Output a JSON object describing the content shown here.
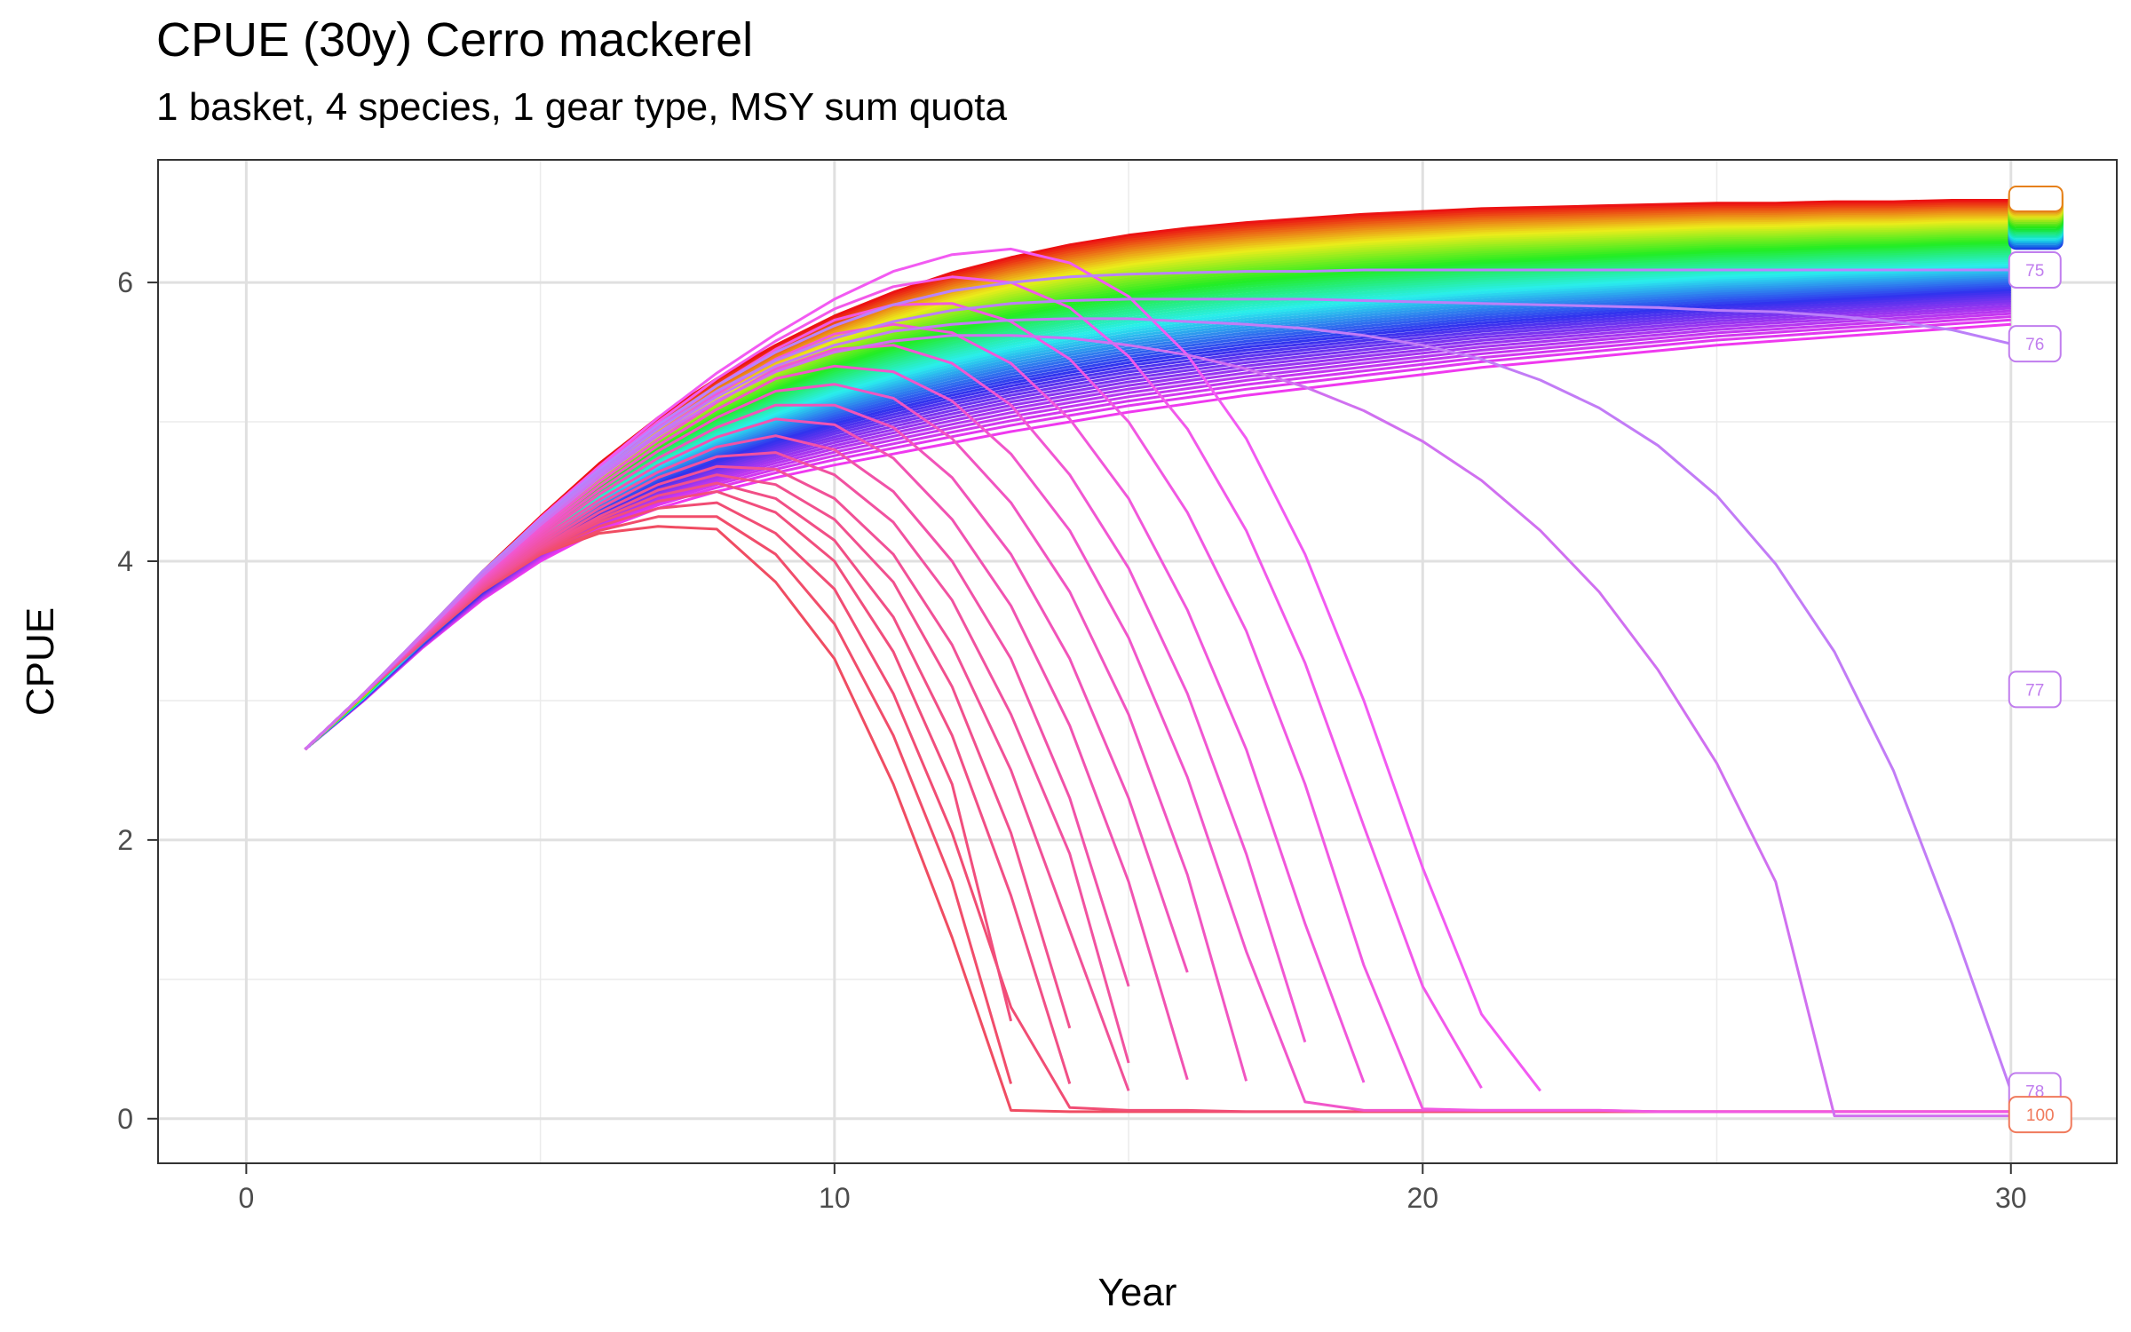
{
  "chart_data": {
    "type": "line",
    "title": "CPUE (30y) Cerro mackerel",
    "subtitle": "1 basket, 4 species, 1 gear type, MSY sum quota",
    "xlabel": "Year",
    "ylabel": "CPUE",
    "xlim": [
      -1.5,
      31.8
    ],
    "ylim": [
      -0.32,
      6.88
    ],
    "x_ticks": [
      0,
      10,
      20,
      30
    ],
    "y_ticks": [
      0,
      2,
      4,
      6
    ],
    "grid": true,
    "legend": "none",
    "series_count": 100,
    "colors": {
      "series_1": "#f8766d",
      "mid_green": "#00ba38",
      "mid_blue": "#00b0f6",
      "series_75": "#b983ff",
      "series_90": "#f564e3",
      "series_100": "#f8766d",
      "label_mix": "#c07dc0"
    },
    "series_envelope": {
      "upper_path": {
        "x": [
          1,
          2,
          3,
          4,
          5,
          6,
          7,
          8,
          9,
          10,
          11,
          12,
          13,
          14,
          15,
          16,
          17,
          18,
          19,
          20,
          21,
          22,
          23,
          24,
          25,
          26,
          27,
          28,
          29,
          30
        ],
        "y": [
          2.65,
          3.05,
          3.48,
          3.92,
          4.32,
          4.7,
          5.03,
          5.31,
          5.55,
          5.76,
          5.93,
          6.07,
          6.18,
          6.27,
          6.34,
          6.39,
          6.43,
          6.46,
          6.49,
          6.51,
          6.53,
          6.54,
          6.55,
          6.56,
          6.57,
          6.57,
          6.58,
          6.58,
          6.59,
          6.59
        ]
      },
      "lower_path": {
        "x": [
          1,
          2,
          3,
          4,
          5,
          6,
          7,
          8,
          9,
          10,
          11,
          12,
          13,
          14,
          15,
          16,
          17,
          18,
          19,
          20,
          21,
          22,
          23,
          24,
          25,
          26,
          27,
          28,
          29,
          30
        ],
        "y": [
          2.65,
          3.0,
          3.38,
          3.72,
          4.0,
          4.22,
          4.38,
          4.5,
          4.6,
          4.69,
          4.77,
          4.85,
          4.93,
          5.0,
          5.07,
          5.13,
          5.19,
          5.24,
          5.29,
          5.34,
          5.39,
          5.43,
          5.47,
          5.51,
          5.55,
          5.58,
          5.61,
          5.64,
          5.67,
          5.7
        ]
      }
    },
    "collapse_series": [
      {
        "x": [
          1,
          2,
          3,
          4,
          5,
          6,
          7,
          8,
          9,
          10,
          11,
          12,
          13,
          14,
          15,
          16,
          17,
          18,
          19,
          20,
          21,
          22,
          23,
          24,
          25,
          26,
          27,
          28,
          29,
          30
        ],
        "y": [
          2.65,
          3.05,
          3.42,
          3.78,
          4.05,
          4.2,
          4.25,
          4.23,
          3.85,
          3.3,
          2.4,
          1.3,
          0.06,
          0.05,
          0.05,
          0.05,
          0.05,
          0.05,
          0.05,
          0.05,
          0.05,
          0.05,
          0.05,
          0.05,
          0.05,
          0.05,
          0.05,
          0.05,
          0.05,
          0.05
        ]
      },
      {
        "x": [
          1,
          2,
          3,
          4,
          5,
          6,
          7,
          8,
          9,
          10,
          11,
          12,
          13
        ],
        "y": [
          2.65,
          3.05,
          3.42,
          3.78,
          4.05,
          4.22,
          4.32,
          4.32,
          4.05,
          3.55,
          2.75,
          1.7,
          0.25
        ]
      },
      {
        "x": [
          1,
          2,
          3,
          4,
          5,
          6,
          7,
          8,
          9,
          10,
          11,
          12,
          13,
          14,
          15,
          16,
          17,
          18,
          19,
          20,
          21,
          22,
          23,
          24,
          25,
          26,
          27,
          28,
          29,
          30
        ],
        "y": [
          2.65,
          3.05,
          3.42,
          3.78,
          4.06,
          4.25,
          4.38,
          4.42,
          4.2,
          3.8,
          3.05,
          2.05,
          0.8,
          0.08,
          0.06,
          0.06,
          0.05,
          0.05,
          0.05,
          0.05,
          0.05,
          0.05,
          0.05,
          0.05,
          0.05,
          0.05,
          0.05,
          0.05,
          0.05,
          0.05
        ]
      },
      {
        "x": [
          1,
          2,
          3,
          4,
          5,
          6,
          7,
          8,
          9,
          10,
          11,
          12,
          13
        ],
        "y": [
          2.65,
          3.05,
          3.42,
          3.79,
          4.07,
          4.28,
          4.43,
          4.5,
          4.35,
          4.0,
          3.35,
          2.4,
          0.7
        ]
      },
      {
        "x": [
          1,
          2,
          3,
          4,
          5,
          6,
          7,
          8,
          9,
          10,
          11,
          12,
          13,
          14
        ],
        "y": [
          2.65,
          3.05,
          3.43,
          3.8,
          4.08,
          4.3,
          4.47,
          4.56,
          4.45,
          4.15,
          3.6,
          2.75,
          1.6,
          0.25
        ]
      },
      {
        "x": [
          1,
          2,
          3,
          4,
          5,
          6,
          7,
          8,
          9,
          10,
          11,
          12,
          13,
          14
        ],
        "y": [
          2.65,
          3.05,
          3.43,
          3.8,
          4.09,
          4.32,
          4.51,
          4.62,
          4.55,
          4.3,
          3.85,
          3.1,
          2.05,
          0.65
        ]
      },
      {
        "x": [
          1,
          2,
          3,
          4,
          5,
          6,
          7,
          8,
          9,
          10,
          11,
          12,
          13,
          14,
          15
        ],
        "y": [
          2.65,
          3.05,
          3.44,
          3.81,
          4.1,
          4.35,
          4.55,
          4.68,
          4.66,
          4.45,
          4.05,
          3.4,
          2.5,
          1.35,
          0.2
        ]
      },
      {
        "x": [
          1,
          2,
          3,
          4,
          5,
          6,
          7,
          8,
          9,
          10,
          11,
          12,
          13,
          14,
          15
        ],
        "y": [
          2.65,
          3.05,
          3.44,
          3.82,
          4.12,
          4.38,
          4.6,
          4.75,
          4.78,
          4.62,
          4.28,
          3.72,
          2.9,
          1.9,
          0.4
        ]
      },
      {
        "x": [
          1,
          2,
          3,
          4,
          5,
          6,
          7,
          8,
          9,
          10,
          11,
          12,
          13,
          14,
          15
        ],
        "y": [
          2.65,
          3.05,
          3.45,
          3.83,
          4.14,
          4.41,
          4.64,
          4.82,
          4.9,
          4.8,
          4.5,
          4.0,
          3.3,
          2.3,
          0.95
        ]
      },
      {
        "x": [
          1,
          2,
          3,
          4,
          5,
          6,
          7,
          8,
          9,
          10,
          11,
          12,
          13,
          14,
          15,
          16
        ],
        "y": [
          2.65,
          3.05,
          3.45,
          3.84,
          4.16,
          4.44,
          4.69,
          4.89,
          5.02,
          4.98,
          4.74,
          4.3,
          3.68,
          2.82,
          1.7,
          0.28
        ]
      },
      {
        "x": [
          1,
          2,
          3,
          4,
          5,
          6,
          7,
          8,
          9,
          10,
          11,
          12,
          13,
          14,
          15,
          16
        ],
        "y": [
          2.65,
          3.05,
          3.46,
          3.85,
          4.18,
          4.48,
          4.74,
          4.96,
          5.12,
          5.12,
          4.96,
          4.6,
          4.05,
          3.3,
          2.3,
          1.05
        ]
      },
      {
        "x": [
          1,
          2,
          3,
          4,
          5,
          6,
          7,
          8,
          9,
          10,
          11,
          12,
          13,
          14,
          15,
          16,
          17
        ],
        "y": [
          2.65,
          3.05,
          3.46,
          3.86,
          4.2,
          4.51,
          4.79,
          5.03,
          5.22,
          5.27,
          5.17,
          4.88,
          4.42,
          3.78,
          2.9,
          1.75,
          0.27
        ]
      },
      {
        "x": [
          1,
          2,
          3,
          4,
          5,
          6,
          7,
          8,
          9,
          10,
          11,
          12,
          13,
          14,
          15,
          16,
          17,
          18,
          19,
          20,
          21,
          22,
          23,
          24,
          25,
          26,
          27,
          28,
          29,
          30
        ],
        "y": [
          2.65,
          3.05,
          3.47,
          3.87,
          4.22,
          4.54,
          4.83,
          5.09,
          5.31,
          5.4,
          5.36,
          5.15,
          4.77,
          4.22,
          3.45,
          2.45,
          1.2,
          0.12,
          0.06,
          0.06,
          0.06,
          0.06,
          0.06,
          0.05,
          0.05,
          0.05,
          0.05,
          0.05,
          0.05,
          0.05
        ]
      },
      {
        "x": [
          1,
          2,
          3,
          4,
          5,
          6,
          7,
          8,
          9,
          10,
          11,
          12,
          13,
          14,
          15,
          16,
          17,
          18
        ],
        "y": [
          2.65,
          3.05,
          3.47,
          3.88,
          4.24,
          4.57,
          4.87,
          5.14,
          5.38,
          5.52,
          5.55,
          5.42,
          5.12,
          4.62,
          3.95,
          3.05,
          1.9,
          0.55
        ]
      },
      {
        "x": [
          1,
          2,
          3,
          4,
          5,
          6,
          7,
          8,
          9,
          10,
          11,
          12,
          13,
          14,
          15,
          16,
          17,
          18,
          19
        ],
        "y": [
          2.65,
          3.05,
          3.47,
          3.89,
          4.26,
          4.6,
          4.92,
          5.2,
          5.45,
          5.63,
          5.7,
          5.64,
          5.42,
          5.02,
          4.45,
          3.65,
          2.65,
          1.4,
          0.26
        ]
      },
      {
        "x": [
          1,
          2,
          3,
          4,
          5,
          6,
          7,
          8,
          9,
          10,
          11,
          12,
          13,
          14,
          15,
          16,
          17,
          18,
          19,
          20,
          21,
          22,
          23,
          24,
          25,
          26,
          27,
          28,
          29,
          30
        ],
        "y": [
          2.65,
          3.05,
          3.48,
          3.9,
          4.28,
          4.63,
          4.96,
          5.26,
          5.52,
          5.73,
          5.84,
          5.85,
          5.72,
          5.45,
          5.0,
          4.35,
          3.5,
          2.4,
          1.1,
          0.07,
          0.06,
          0.06,
          0.06,
          0.05,
          0.05,
          0.05,
          0.05,
          0.05,
          0.05,
          0.05
        ]
      },
      {
        "x": [
          1,
          2,
          3,
          4,
          5,
          6,
          7,
          8,
          9,
          10,
          11,
          12,
          13,
          14,
          15,
          16,
          17,
          18,
          19,
          20,
          21
        ],
        "y": [
          2.65,
          3.05,
          3.48,
          3.91,
          4.3,
          4.66,
          5.0,
          5.31,
          5.58,
          5.81,
          5.97,
          6.04,
          6.0,
          5.82,
          5.47,
          4.95,
          4.22,
          3.27,
          2.1,
          0.95,
          0.22
        ]
      },
      {
        "x": [
          1,
          2,
          3,
          4,
          5,
          6,
          7,
          8,
          9,
          10,
          11,
          12,
          13,
          14,
          15,
          16,
          17,
          18,
          19,
          20,
          21,
          22
        ],
        "y": [
          2.65,
          3.05,
          3.48,
          3.91,
          4.31,
          4.68,
          5.03,
          5.35,
          5.63,
          5.88,
          6.08,
          6.2,
          6.24,
          6.14,
          5.9,
          5.48,
          4.88,
          4.05,
          3.0,
          1.8,
          0.75,
          0.2
        ]
      }
    ],
    "labeled_series": [
      {
        "label": "75",
        "x": [
          1,
          2,
          3,
          4,
          5,
          6,
          7,
          8,
          9,
          10,
          11,
          12,
          13,
          14,
          15,
          16,
          17,
          18,
          19,
          20,
          21,
          22,
          23,
          24,
          25,
          26,
          27,
          28,
          29,
          30
        ],
        "y": [
          2.65,
          3.05,
          3.48,
          3.92,
          4.3,
          4.66,
          4.98,
          5.26,
          5.5,
          5.69,
          5.84,
          5.94,
          6.0,
          6.04,
          6.06,
          6.07,
          6.08,
          6.08,
          6.09,
          6.09,
          6.09,
          6.09,
          6.09,
          6.09,
          6.09,
          6.09,
          6.09,
          6.09,
          6.09,
          6.09
        ]
      },
      {
        "label": "76",
        "x": [
          1,
          2,
          3,
          4,
          5,
          6,
          7,
          8,
          9,
          10,
          11,
          12,
          13,
          14,
          15,
          16,
          17,
          18,
          19,
          20,
          21,
          22,
          23,
          24,
          25,
          26,
          27,
          28,
          29,
          30
        ],
        "y": [
          2.65,
          3.05,
          3.48,
          3.91,
          4.29,
          4.64,
          4.95,
          5.22,
          5.44,
          5.6,
          5.72,
          5.8,
          5.85,
          5.87,
          5.88,
          5.88,
          5.88,
          5.88,
          5.87,
          5.86,
          5.85,
          5.84,
          5.83,
          5.82,
          5.8,
          5.79,
          5.76,
          5.72,
          5.66,
          5.56
        ]
      },
      {
        "label": "77",
        "x": [
          1,
          2,
          3,
          4,
          5,
          6,
          7,
          8,
          9,
          10,
          11,
          12,
          13,
          14,
          15,
          16,
          17,
          18,
          19,
          20,
          21,
          22,
          23,
          24,
          25,
          26,
          27,
          28,
          29,
          30
        ],
        "y": [
          2.65,
          3.05,
          3.48,
          3.9,
          4.28,
          4.62,
          4.92,
          5.18,
          5.4,
          5.55,
          5.65,
          5.7,
          5.73,
          5.74,
          5.74,
          5.72,
          5.7,
          5.67,
          5.62,
          5.55,
          5.45,
          5.3,
          5.1,
          4.83,
          4.47,
          3.98,
          3.35,
          2.5,
          1.4,
          0.2
        ]
      },
      {
        "label": "100",
        "x": [
          1,
          2,
          3,
          4,
          5,
          6,
          7,
          8,
          9,
          10,
          11,
          12,
          13,
          14,
          15,
          16,
          17,
          18,
          19,
          20,
          21,
          22,
          23,
          24,
          25,
          26,
          27,
          28,
          29,
          30
        ],
        "y": [
          2.65,
          3.05,
          3.47,
          3.89,
          4.26,
          4.6,
          4.9,
          5.15,
          5.36,
          5.5,
          5.58,
          5.62,
          5.62,
          5.6,
          5.55,
          5.48,
          5.38,
          5.25,
          5.08,
          4.86,
          4.58,
          4.22,
          3.78,
          3.22,
          2.55,
          1.7,
          0.02,
          0.02,
          0.02,
          0.02
        ]
      }
    ],
    "end_labels": [
      {
        "text": "75",
        "y": 6.09
      },
      {
        "text": "76",
        "y": 5.56
      },
      {
        "text": "77",
        "y": 3.08
      },
      {
        "text": "78",
        "y": 0.2
      },
      {
        "text": "100",
        "y": 0.03
      }
    ]
  }
}
